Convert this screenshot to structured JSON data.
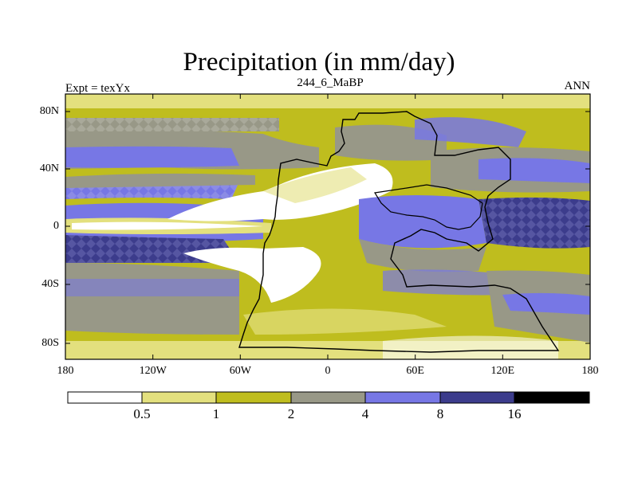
{
  "title": "Precipitation (in mm/day)",
  "subtitle": "244_6_MaBP",
  "left_label": "Expt = texYx",
  "right_label": "ANN",
  "colors": {
    "level_0": "#ffffff",
    "level_1": "#e3e07e",
    "level_2": "#bfbd1e",
    "level_3": "#989887",
    "level_4": "#7777e5",
    "level_5": "#3c3c8c",
    "level_6": "#000000",
    "coast": "#000000"
  },
  "map": {
    "lon_range": [
      -180,
      180
    ],
    "lat_range": [
      -90,
      90
    ],
    "x_ticks": [
      "180",
      "120W",
      "60W",
      "0",
      "60E",
      "120E",
      "180"
    ],
    "y_ticks": [
      "80N",
      "40N",
      "0",
      "40S",
      "80S"
    ]
  },
  "colorbar": {
    "levels": [
      "0.5",
      "1",
      "2",
      "4",
      "8",
      "16"
    ]
  }
}
